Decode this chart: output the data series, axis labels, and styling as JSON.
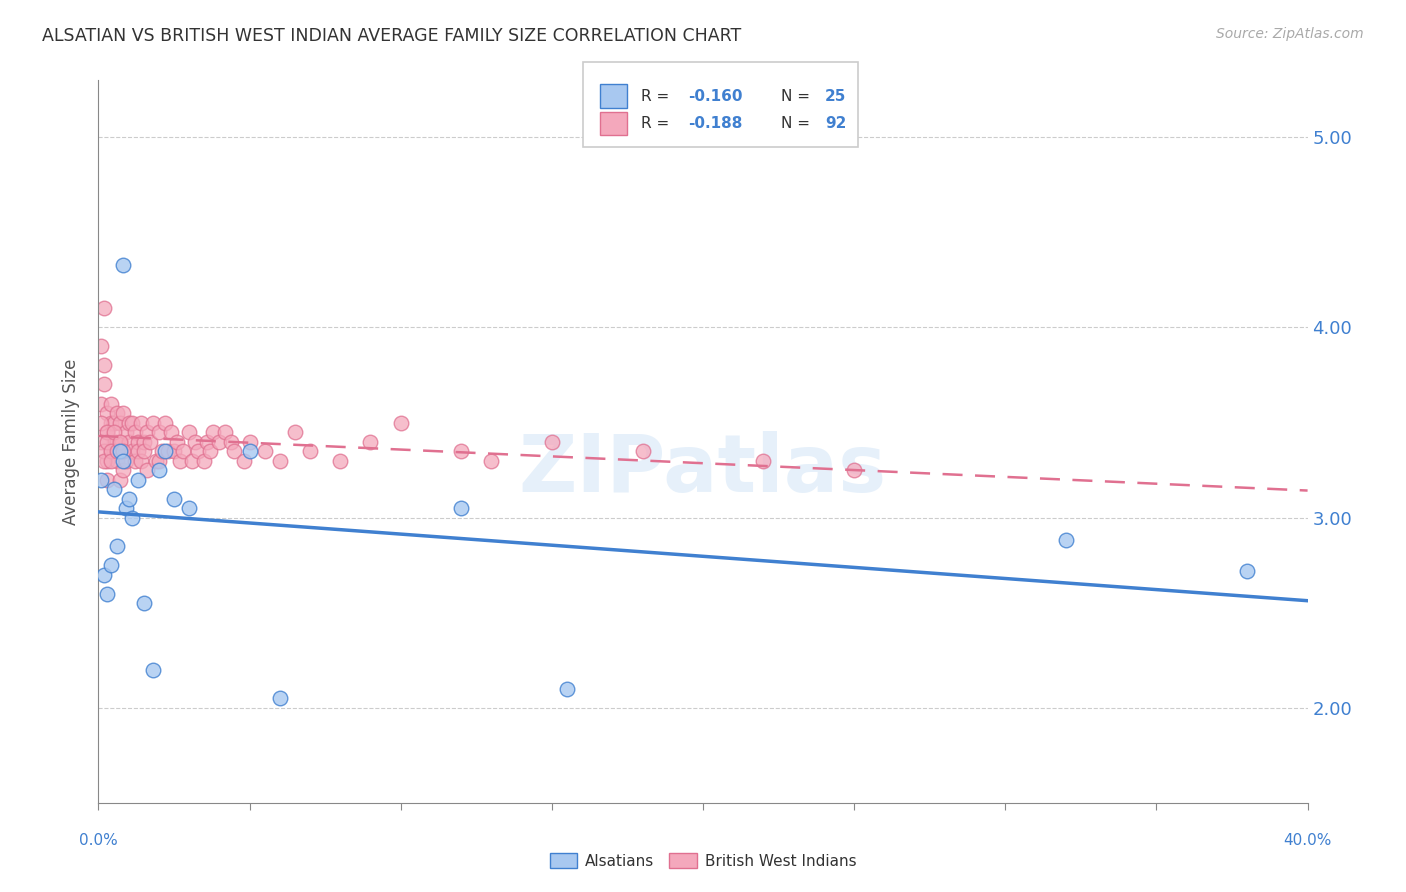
{
  "title": "ALSATIAN VS BRITISH WEST INDIAN AVERAGE FAMILY SIZE CORRELATION CHART",
  "source": "Source: ZipAtlas.com",
  "ylabel": "Average Family Size",
  "yticks_right": [
    2.0,
    3.0,
    4.0,
    5.0
  ],
  "xlim": [
    0.0,
    0.4
  ],
  "ylim": [
    1.5,
    5.3
  ],
  "color_alsatian": "#A8C8F0",
  "color_bwi": "#F4A8BC",
  "line_color_alsatian": "#4080D0",
  "line_color_bwi": "#E07090",
  "legend_r_alsatian": "-0.160",
  "legend_n_alsatian": "25",
  "legend_r_bwi": "-0.188",
  "legend_n_bwi": "92",
  "watermark": "ZIPatlas",
  "alsatian_x": [
    0.001,
    0.002,
    0.003,
    0.004,
    0.005,
    0.006,
    0.007,
    0.008,
    0.009,
    0.01,
    0.011,
    0.013,
    0.015,
    0.018,
    0.02,
    0.022,
    0.025,
    0.03,
    0.05,
    0.06,
    0.12,
    0.155,
    0.32,
    0.38,
    0.008
  ],
  "alsatian_y": [
    3.2,
    2.7,
    2.6,
    2.75,
    3.15,
    2.85,
    3.35,
    3.3,
    3.05,
    3.1,
    3.0,
    3.2,
    2.55,
    2.2,
    3.25,
    3.35,
    3.1,
    3.05,
    3.35,
    2.05,
    3.05,
    2.1,
    2.88,
    2.72,
    4.33
  ],
  "bwi_x": [
    0.001,
    0.001,
    0.002,
    0.002,
    0.002,
    0.003,
    0.003,
    0.003,
    0.003,
    0.004,
    0.004,
    0.004,
    0.005,
    0.005,
    0.005,
    0.006,
    0.006,
    0.006,
    0.007,
    0.007,
    0.007,
    0.008,
    0.008,
    0.008,
    0.009,
    0.009,
    0.01,
    0.01,
    0.011,
    0.011,
    0.012,
    0.012,
    0.013,
    0.013,
    0.014,
    0.014,
    0.015,
    0.015,
    0.016,
    0.016,
    0.017,
    0.018,
    0.019,
    0.02,
    0.02,
    0.021,
    0.022,
    0.023,
    0.024,
    0.025,
    0.026,
    0.027,
    0.028,
    0.03,
    0.031,
    0.032,
    0.033,
    0.035,
    0.036,
    0.037,
    0.038,
    0.04,
    0.042,
    0.044,
    0.045,
    0.048,
    0.05,
    0.055,
    0.06,
    0.065,
    0.07,
    0.08,
    0.09,
    0.1,
    0.12,
    0.13,
    0.15,
    0.18,
    0.22,
    0.25,
    0.001,
    0.001,
    0.002,
    0.002,
    0.003,
    0.003,
    0.004,
    0.004,
    0.005,
    0.006,
    0.007,
    0.008
  ],
  "bwi_y": [
    3.9,
    3.6,
    4.1,
    3.8,
    3.7,
    3.55,
    3.45,
    3.3,
    3.2,
    3.35,
    3.5,
    3.6,
    3.4,
    3.35,
    3.5,
    3.55,
    3.4,
    3.3,
    3.5,
    3.4,
    3.2,
    3.55,
    3.35,
    3.25,
    3.45,
    3.3,
    3.5,
    3.4,
    3.5,
    3.35,
    3.45,
    3.3,
    3.4,
    3.35,
    3.5,
    3.3,
    3.4,
    3.35,
    3.45,
    3.25,
    3.4,
    3.5,
    3.3,
    3.45,
    3.3,
    3.35,
    3.5,
    3.35,
    3.45,
    3.35,
    3.4,
    3.3,
    3.35,
    3.45,
    3.3,
    3.4,
    3.35,
    3.3,
    3.4,
    3.35,
    3.45,
    3.4,
    3.45,
    3.4,
    3.35,
    3.3,
    3.4,
    3.35,
    3.3,
    3.45,
    3.35,
    3.3,
    3.4,
    3.5,
    3.35,
    3.3,
    3.4,
    3.35,
    3.3,
    3.25,
    3.5,
    3.4,
    3.35,
    3.3,
    3.45,
    3.4,
    3.35,
    3.3,
    3.45,
    3.35,
    3.4,
    3.35
  ]
}
